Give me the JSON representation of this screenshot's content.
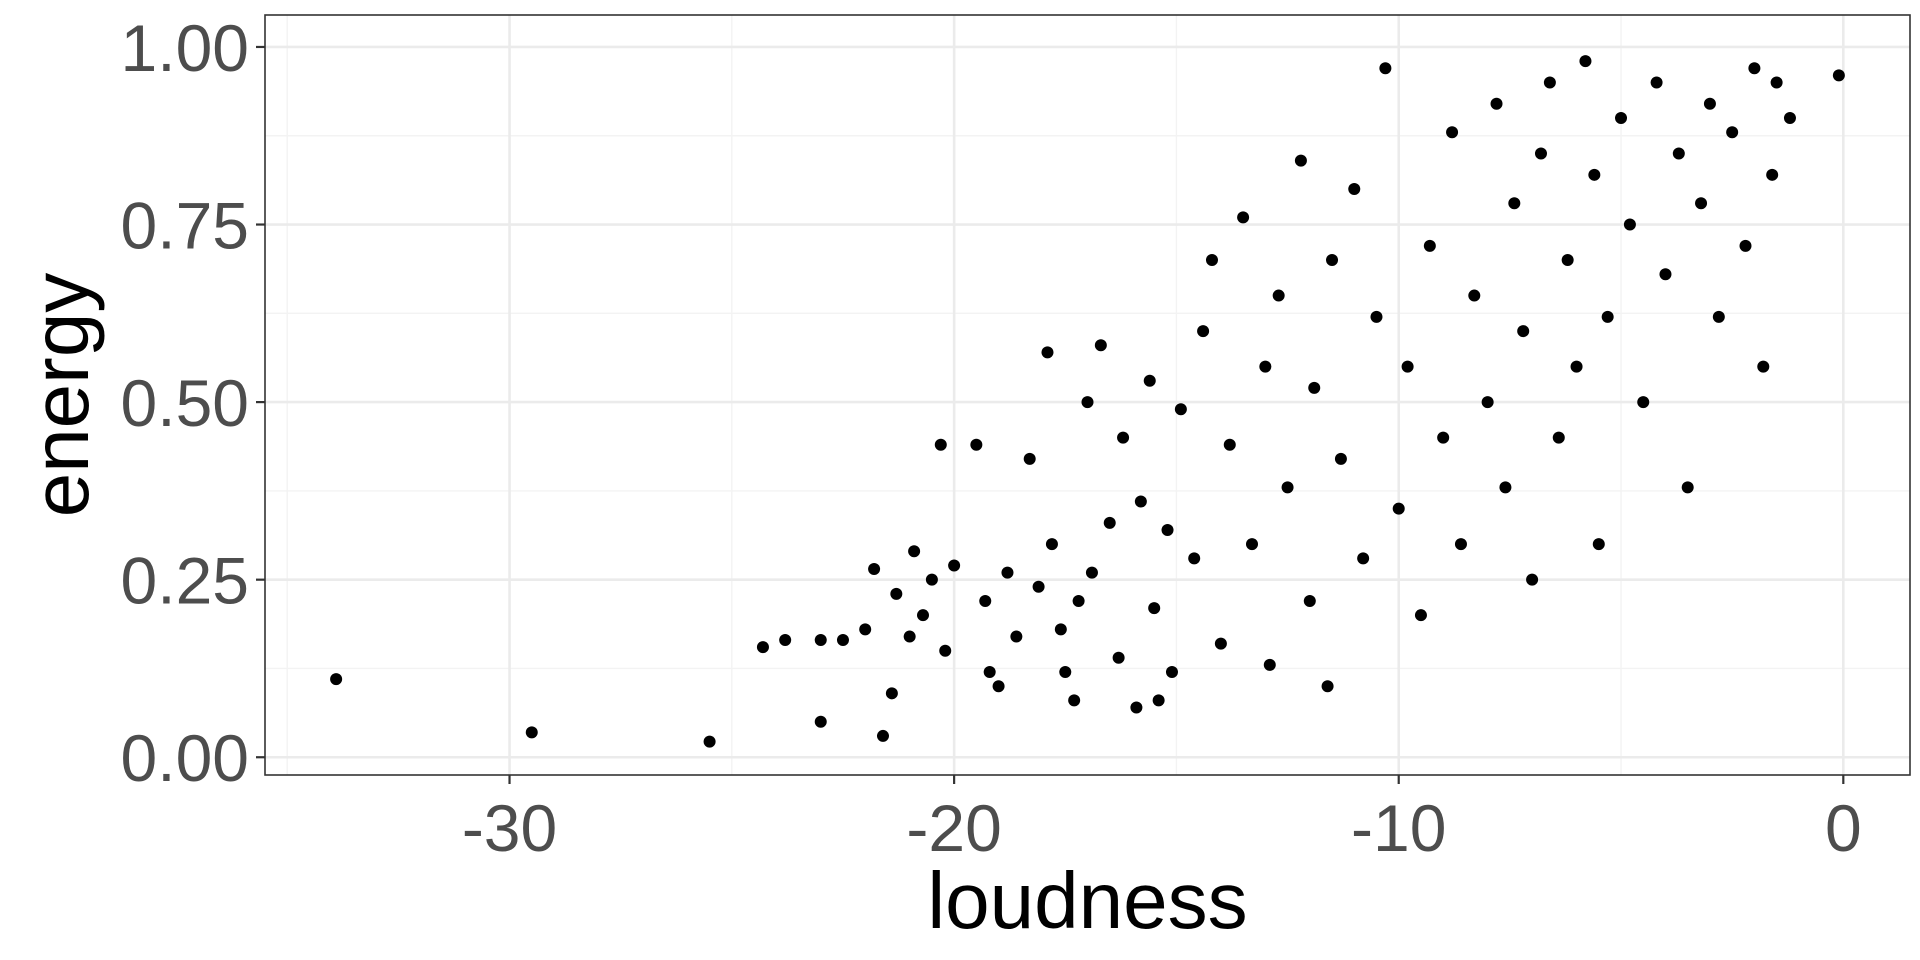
{
  "chart_data": {
    "type": "scatter",
    "title": "",
    "xlabel": "loudness",
    "ylabel": "energy",
    "xlim": [
      -35.5,
      1.5
    ],
    "ylim": [
      -0.025,
      1.045
    ],
    "x_ticks": [
      -30,
      -20,
      -10,
      0
    ],
    "x_tick_labels": [
      "-30",
      "-20",
      "-10",
      "0"
    ],
    "y_ticks": [
      0,
      0.25,
      0.5,
      0.75,
      1.0
    ],
    "y_tick_labels": [
      "0.00",
      "0.25",
      "0.50",
      "0.75",
      "1.00"
    ],
    "grid": true,
    "legend": "none",
    "point_color": "#000000",
    "series": [
      {
        "x": [
          -33.9,
          -29.5,
          -25.5,
          -24.3,
          -23.8,
          -23.0,
          -23.0,
          -22.5,
          -22.0,
          -21.8,
          -21.6,
          -21.4,
          -21.3,
          -21.0,
          -20.9,
          -20.7,
          -20.5,
          -20.3,
          -20.2,
          -20.0,
          -19.5,
          -19.3,
          -19.2,
          -19.0,
          -18.8,
          -18.6,
          -18.3,
          -18.1,
          -17.9,
          -17.8,
          -17.6,
          -17.5,
          -17.3,
          -17.2,
          -17.0,
          -16.9,
          -16.7,
          -16.5,
          -16.3,
          -16.2,
          -15.9,
          -15.8,
          -15.6,
          -15.5,
          -15.4,
          -15.2,
          -15.1,
          -14.9,
          -14.6,
          -14.4,
          -14.2,
          -14.0,
          -13.8,
          -13.5,
          -13.3,
          -13.0,
          -12.9,
          -12.7,
          -12.5,
          -12.2,
          -12.0,
          -11.9,
          -11.6,
          -11.5,
          -11.3,
          -11.0,
          -10.8,
          -10.5,
          -10.3,
          -10.0,
          -9.8,
          -9.5,
          -9.3,
          -9.0,
          -8.8,
          -8.6,
          -8.3,
          -8.0,
          -7.8,
          -7.6,
          -7.4,
          -7.2,
          -7.0,
          -6.8,
          -6.6,
          -6.4,
          -6.2,
          -6.0,
          -5.8,
          -5.6,
          -5.5,
          -5.3,
          -5.0,
          -4.8,
          -4.5,
          -4.2,
          -4.0,
          -3.7,
          -3.5,
          -3.2,
          -3.0,
          -2.8,
          -2.5,
          -2.2,
          -2.0,
          -1.8,
          -1.6,
          -1.5,
          -1.2,
          -0.1
        ],
        "y": [
          0.11,
          0.035,
          0.022,
          0.155,
          0.165,
          0.05,
          0.165,
          0.165,
          0.18,
          0.265,
          0.03,
          0.09,
          0.23,
          0.17,
          0.29,
          0.2,
          0.25,
          0.44,
          0.15,
          0.27,
          0.44,
          0.22,
          0.12,
          0.1,
          0.26,
          0.17,
          0.42,
          0.24,
          0.57,
          0.3,
          0.18,
          0.12,
          0.08,
          0.22,
          0.5,
          0.26,
          0.58,
          0.33,
          0.14,
          0.45,
          0.07,
          0.36,
          0.53,
          0.21,
          0.08,
          0.32,
          0.12,
          0.49,
          0.28,
          0.6,
          0.7,
          0.16,
          0.44,
          0.76,
          0.3,
          0.55,
          0.13,
          0.65,
          0.38,
          0.84,
          0.22,
          0.52,
          0.1,
          0.7,
          0.42,
          0.8,
          0.28,
          0.62,
          0.97,
          0.35,
          0.55,
          0.2,
          0.72,
          0.45,
          0.88,
          0.3,
          0.65,
          0.5,
          0.92,
          0.38,
          0.78,
          0.6,
          0.25,
          0.85,
          0.95,
          0.45,
          0.7,
          0.55,
          0.98,
          0.82,
          0.3,
          0.62,
          0.9,
          0.75,
          0.5,
          0.95,
          0.68,
          0.85,
          0.38,
          0.78,
          0.92,
          0.62,
          0.88,
          0.72,
          0.97,
          0.55,
          0.82,
          0.95,
          0.9,
          0.96
        ]
      }
    ]
  }
}
